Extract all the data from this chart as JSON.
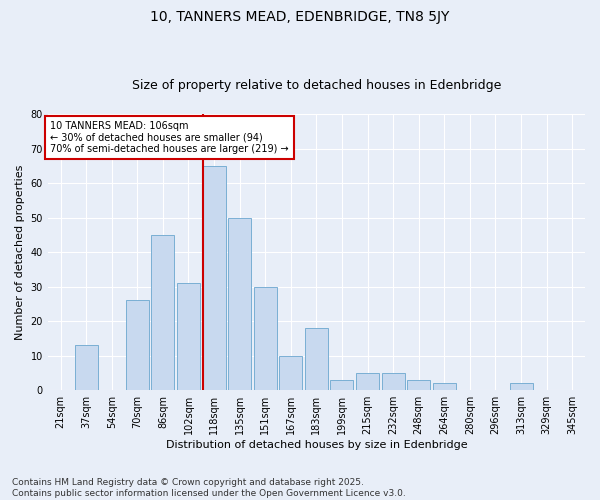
{
  "title1": "10, TANNERS MEAD, EDENBRIDGE, TN8 5JY",
  "title2": "Size of property relative to detached houses in Edenbridge",
  "xlabel": "Distribution of detached houses by size in Edenbridge",
  "ylabel": "Number of detached properties",
  "bins": [
    "21sqm",
    "37sqm",
    "54sqm",
    "70sqm",
    "86sqm",
    "102sqm",
    "118sqm",
    "135sqm",
    "151sqm",
    "167sqm",
    "183sqm",
    "199sqm",
    "215sqm",
    "232sqm",
    "248sqm",
    "264sqm",
    "280sqm",
    "296sqm",
    "313sqm",
    "329sqm",
    "345sqm"
  ],
  "values": [
    0,
    13,
    0,
    26,
    45,
    31,
    65,
    50,
    30,
    10,
    18,
    3,
    5,
    5,
    3,
    2,
    0,
    0,
    2,
    0,
    0
  ],
  "bar_color": "#c8d9ef",
  "bar_edge_color": "#7aafd4",
  "vline_x_index": 6,
  "vline_color": "#cc0000",
  "ylim": [
    0,
    80
  ],
  "yticks": [
    0,
    10,
    20,
    30,
    40,
    50,
    60,
    70,
    80
  ],
  "annotation_text": "10 TANNERS MEAD: 106sqm\n← 30% of detached houses are smaller (94)\n70% of semi-detached houses are larger (219) →",
  "annotation_box_color": "#ffffff",
  "annotation_border_color": "#cc0000",
  "footer_line1": "Contains HM Land Registry data © Crown copyright and database right 2025.",
  "footer_line2": "Contains public sector information licensed under the Open Government Licence v3.0.",
  "bg_color": "#e8eef8",
  "plot_bg_color": "#e8eef8",
  "grid_color": "#ffffff",
  "title_fontsize": 10,
  "subtitle_fontsize": 9,
  "tick_fontsize": 7,
  "label_fontsize": 8,
  "footer_fontsize": 6.5
}
